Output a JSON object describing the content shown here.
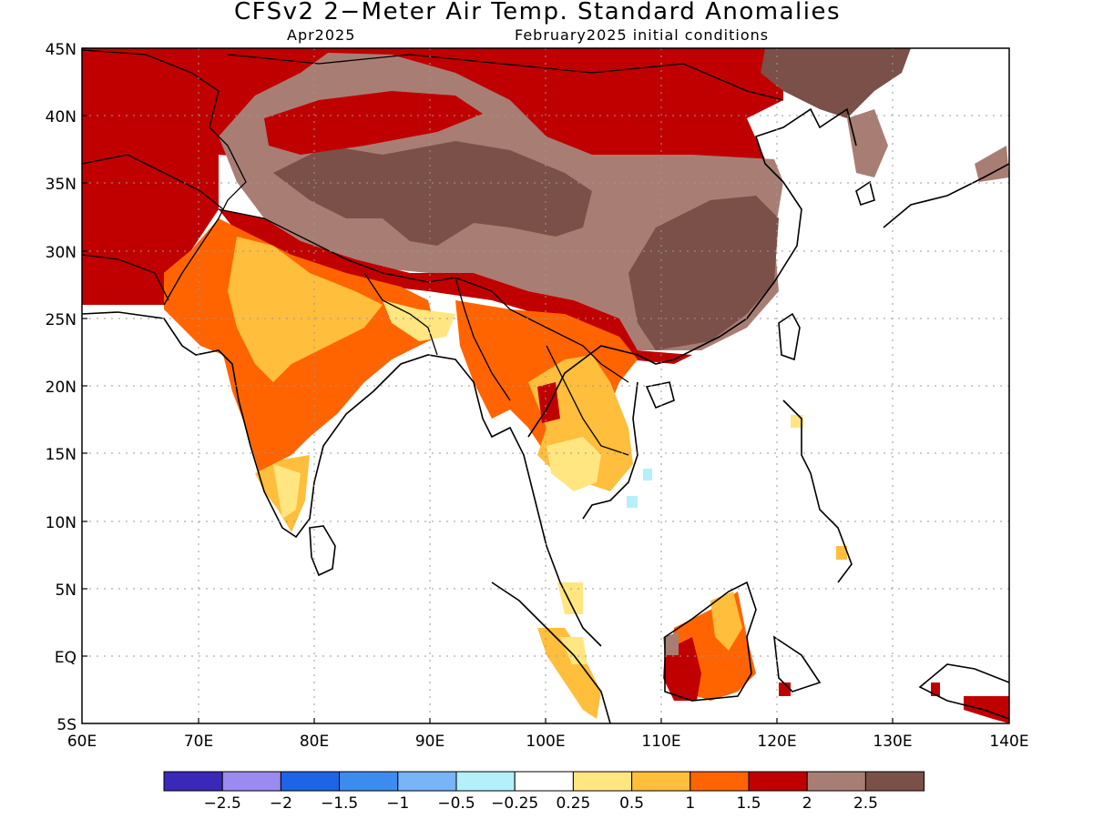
{
  "title": "CFSv2 2−Meter Air Temp. Standard Anomalies",
  "subtitle_left": "Apr2025",
  "subtitle_right": "February2025 initial conditions",
  "x_ticks": [
    "60E",
    "70E",
    "80E",
    "90E",
    "100E",
    "110E",
    "120E",
    "130E",
    "140E"
  ],
  "y_ticks": [
    "45N",
    "40N",
    "35N",
    "30N",
    "25N",
    "20N",
    "15N",
    "10N",
    "5N",
    "EQ",
    "5S"
  ],
  "colorbar": {
    "colors": [
      "#3a28b8",
      "#9b8aef",
      "#1e64e6",
      "#3c8cf0",
      "#78b4f8",
      "#b4f0fa",
      "#ffffff",
      "#ffe680",
      "#ffbe3c",
      "#ff6400",
      "#c00000",
      "#a87e74",
      "#7a5048"
    ],
    "labels": [
      "−2.5",
      "−2",
      "−1.5",
      "−1",
      "−0.5",
      "−0.25",
      "0.25",
      "0.5",
      "1",
      "1.5",
      "2",
      "2.5"
    ]
  },
  "map_data": {
    "type": "heatmap",
    "lon_range": [
      60,
      140
    ],
    "lat_range": [
      -5,
      45
    ],
    "units": "standard anomaly"
  }
}
